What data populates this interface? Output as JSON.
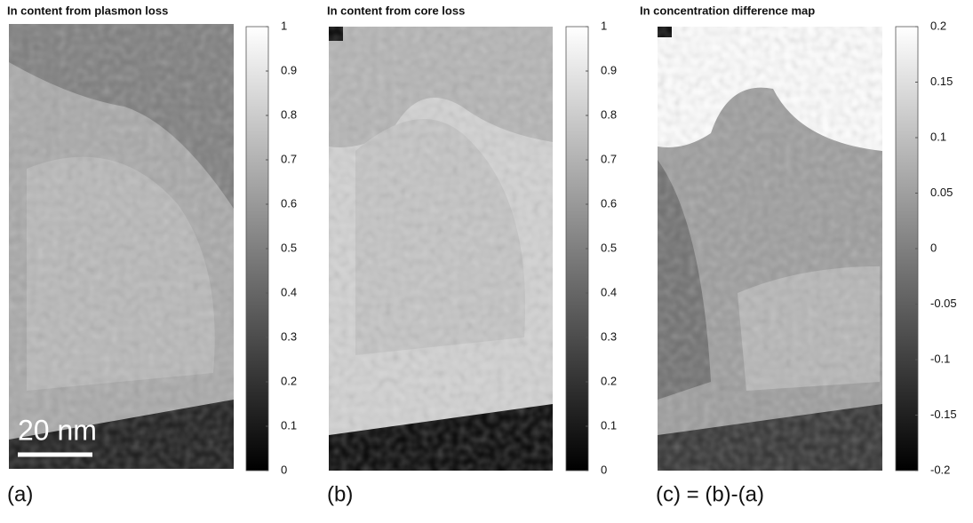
{
  "chart_data": [
    {
      "type": "heatmap",
      "title": "In content from plasmon loss",
      "label": "(a)",
      "annotation": "20 nm",
      "clim": [
        0,
        1
      ],
      "cticks": [
        0,
        0.1,
        0.2,
        0.3,
        0.4,
        0.5,
        0.6,
        0.7,
        0.8,
        0.9,
        1
      ]
    },
    {
      "type": "heatmap",
      "title": "In content from core loss",
      "label": "(b)",
      "clim": [
        0,
        1
      ],
      "cticks": [
        0,
        0.1,
        0.2,
        0.3,
        0.4,
        0.5,
        0.6,
        0.7,
        0.8,
        0.9,
        1
      ]
    },
    {
      "type": "heatmap",
      "title": "In concentration difference map",
      "label": "(c) = (b)-(a)",
      "clim": [
        -0.2,
        0.2
      ],
      "cticks": [
        -0.2,
        -0.15,
        -0.1,
        -0.05,
        0,
        0.05,
        0.1,
        0.15,
        0.2
      ]
    }
  ]
}
